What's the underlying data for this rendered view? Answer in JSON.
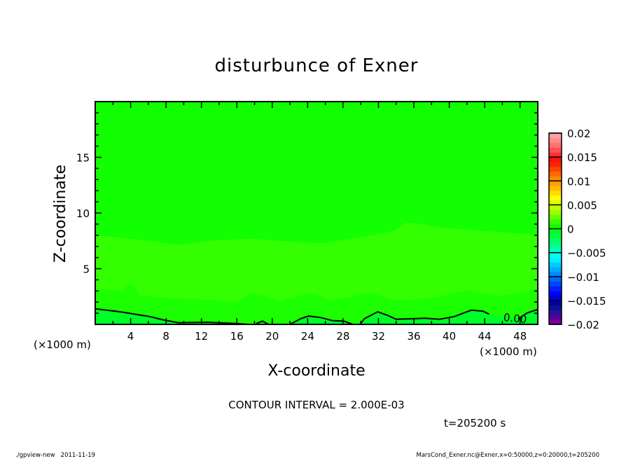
{
  "chart_data": {
    "type": "heatmap",
    "subtype": "filled-contour",
    "title": "disturbunce of Exner",
    "xlabel": "X-coordinate",
    "ylabel": "Z-coordinate",
    "x_unit_left": "(×1000 m)",
    "x_unit_right": "(×1000 m)",
    "xlim": [
      0,
      50
    ],
    "ylim": [
      0,
      20
    ],
    "x_ticks": [
      4,
      8,
      12,
      16,
      20,
      24,
      28,
      32,
      36,
      40,
      44,
      48
    ],
    "x_tick_labels": [
      "4",
      "8",
      "12",
      "16",
      "20",
      "24",
      "28",
      "32",
      "36",
      "40",
      "44",
      "48"
    ],
    "y_ticks": [
      5,
      10,
      15
    ],
    "y_tick_labels": [
      "5",
      "10",
      "15"
    ],
    "x_minor_step": 2,
    "y_minor_step": 1,
    "region_colors": {
      "above_upper": "#11ff00",
      "middle": "#33ff00",
      "lower": "#1cff00",
      "below_zero": "#00ff26"
    },
    "upper_boundary": [
      [
        0,
        8.0
      ],
      [
        2.8,
        7.8
      ],
      [
        6.1,
        7.5
      ],
      [
        9.4,
        7.15
      ],
      [
        12.7,
        7.5
      ],
      [
        17.6,
        7.7
      ],
      [
        22.5,
        7.4
      ],
      [
        25.8,
        7.3
      ],
      [
        32.4,
        8.15
      ],
      [
        33.7,
        8.4
      ],
      [
        35.0,
        9.1
      ],
      [
        36.3,
        9.1
      ],
      [
        38.9,
        8.7
      ],
      [
        42.2,
        8.5
      ],
      [
        45.5,
        8.3
      ],
      [
        50,
        8.05
      ]
    ],
    "lower_boundary": [
      [
        0,
        3.2
      ],
      [
        1.5,
        3.1
      ],
      [
        2.8,
        3.0
      ],
      [
        3.8,
        3.6
      ],
      [
        4.4,
        3.5
      ],
      [
        4.9,
        2.6
      ],
      [
        7.7,
        2.4
      ],
      [
        12.7,
        2.2
      ],
      [
        15.9,
        2.0
      ],
      [
        17.6,
        2.8
      ],
      [
        19.2,
        2.5
      ],
      [
        20.9,
        2.1
      ],
      [
        24.1,
        2.8
      ],
      [
        26.8,
        2.2
      ],
      [
        29.0,
        2.5
      ],
      [
        31.0,
        2.9
      ],
      [
        33.7,
        2.2
      ],
      [
        35.6,
        2.2
      ],
      [
        38.9,
        2.5
      ],
      [
        42.2,
        3.1
      ],
      [
        45.5,
        2.5
      ],
      [
        50,
        3.2
      ]
    ],
    "zero_contour_segments": [
      [
        [
          0,
          1.4
        ],
        [
          2.8,
          1.13
        ],
        [
          6.1,
          0.71
        ],
        [
          7.7,
          0.4
        ],
        [
          9.4,
          0.15
        ],
        [
          12.7,
          0.19
        ],
        [
          15.9,
          0.08
        ],
        [
          17.3,
          0
        ]
      ],
      [
        [
          18.2,
          0.08
        ],
        [
          18.9,
          0.29
        ],
        [
          19.6,
          0
        ]
      ],
      [
        [
          22.0,
          0
        ],
        [
          23.2,
          0.5
        ],
        [
          24.1,
          0.75
        ],
        [
          25.5,
          0.61
        ],
        [
          26.8,
          0.34
        ],
        [
          28.1,
          0.29
        ],
        [
          29.1,
          0
        ]
      ],
      [
        [
          29.9,
          0
        ],
        [
          30.4,
          0.5
        ],
        [
          31.9,
          1.13
        ],
        [
          33.0,
          0.82
        ],
        [
          34.0,
          0.46
        ],
        [
          35.6,
          0.5
        ],
        [
          37.3,
          0.55
        ],
        [
          38.9,
          0.46
        ],
        [
          40.6,
          0.71
        ],
        [
          42.5,
          1.28
        ],
        [
          43.8,
          1.19
        ],
        [
          44.5,
          0.92
        ]
      ],
      [
        [
          47.8,
          0.5
        ],
        [
          48.8,
          1.03
        ],
        [
          50,
          1.34
        ]
      ]
    ],
    "contour_label": "0.00",
    "contour_label_pos": [
      46.1,
      0.45
    ],
    "colorbar": {
      "min": -0.02,
      "max": 0.02,
      "tick_values": [
        0.02,
        0.015,
        0.01,
        0.005,
        0,
        -0.005,
        -0.01,
        -0.015,
        -0.02
      ],
      "tick_labels": [
        "0.02",
        "0.015",
        "0.01",
        "0.005",
        "0",
        "−0.005",
        "−0.01",
        "−0.015",
        "−0.02"
      ],
      "colors_bottom_to_top": [
        "#7a00a0",
        "#5a0098",
        "#2a1098",
        "#10108c",
        "#0000a8",
        "#0000d8",
        "#0000ff",
        "#0022ff",
        "#0044ff",
        "#0066ff",
        "#0088ff",
        "#00aaff",
        "#00ccff",
        "#00eeff",
        "#00ffee",
        "#00ffc0",
        "#00ff90",
        "#00ff66",
        "#00ff44",
        "#00ff22",
        "#11ff00",
        "#33ff00",
        "#66ff00",
        "#99ff00",
        "#bbff00",
        "#ddff00",
        "#ffff00",
        "#ffdd00",
        "#ffbb00",
        "#ffa000",
        "#ff8800",
        "#ff6a00",
        "#ff4400",
        "#ff2200",
        "#ff1010",
        "#ff3030",
        "#ff5050",
        "#ff7070",
        "#ff8a8a",
        "#ffa0a0"
      ]
    }
  },
  "annotations": {
    "contour_interval": "CONTOUR INTERVAL = 2.000E-03",
    "time": "t=205200 s",
    "footer_left": "./gpview-new   2011-11-19",
    "footer_right": "MarsCond_Exner.nc@Exner,x=0:50000,z=0:20000,t=205200"
  }
}
